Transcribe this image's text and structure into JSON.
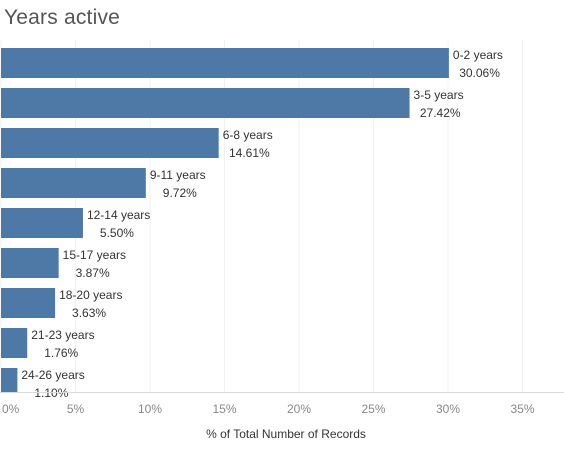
{
  "chart_data": {
    "type": "bar",
    "orientation": "horizontal",
    "title": "Years active",
    "xlabel": "% of Total Number of Records",
    "ylabel": "",
    "xlim": [
      0,
      35
    ],
    "x_ticks": [
      0,
      5,
      10,
      15,
      20,
      25,
      30,
      35
    ],
    "x_tick_labels": [
      "0%",
      "5%",
      "10%",
      "15%",
      "20%",
      "25%",
      "30%",
      "35%"
    ],
    "categories": [
      "0-2 years",
      "3-5 years",
      "6-8 years",
      "9-11 years",
      "12-14 years",
      "15-17 years",
      "18-20 years",
      "21-23 years",
      "24-26 years"
    ],
    "values": [
      30.06,
      27.42,
      14.61,
      9.72,
      5.5,
      3.87,
      3.63,
      1.76,
      1.1
    ],
    "value_labels": [
      "30.06%",
      "27.42%",
      "14.61%",
      "9.72%",
      "5.50%",
      "3.87%",
      "3.63%",
      "1.76%",
      "1.10%"
    ],
    "bar_color": "#4e79a7"
  }
}
